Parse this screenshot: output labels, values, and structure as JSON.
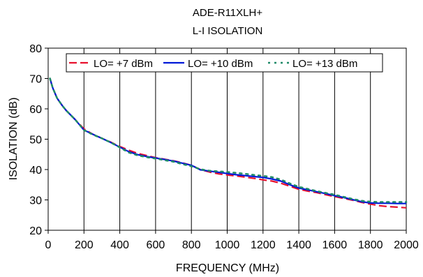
{
  "chart_data": {
    "type": "line",
    "title": "ADE-R11XLH+",
    "subtitle": "L-I ISOLATION",
    "xlabel": "FREQUENCY (MHz)",
    "ylabel": "ISOLATION (dB)",
    "xlim": [
      0,
      2000
    ],
    "ylim": [
      20,
      80
    ],
    "x_ticks": [
      "0",
      "200",
      "400",
      "600",
      "800",
      "1000",
      "1200",
      "1400",
      "1600",
      "1800",
      "2000"
    ],
    "y_ticks": [
      "20",
      "30",
      "40",
      "50",
      "60",
      "70",
      "80"
    ],
    "grid": "vertical",
    "legend_position": "top",
    "series": [
      {
        "name": "LO= +7 dBm",
        "color": "#e8112d",
        "dash": "long-dash",
        "x": [
          10,
          25,
          50,
          80,
          100,
          150,
          200,
          250,
          300,
          350,
          400,
          450,
          500,
          550,
          600,
          650,
          700,
          750,
          800,
          850,
          900,
          950,
          1000,
          1050,
          1100,
          1150,
          1200,
          1250,
          1300,
          1350,
          1400,
          1450,
          1500,
          1550,
          1600,
          1650,
          1700,
          1750,
          1800,
          1850,
          1900,
          1950,
          2000
        ],
        "y": [
          70,
          67,
          63.5,
          61,
          59.5,
          56.5,
          53.4,
          51.6,
          50.3,
          49,
          47.6,
          46.4,
          45.3,
          44.6,
          43.9,
          43.4,
          42.9,
          42.2,
          41.4,
          40,
          39.2,
          38.6,
          38.2,
          37.9,
          37.5,
          37.1,
          36.6,
          36.2,
          35.5,
          34.5,
          33.5,
          32.9,
          32.4,
          31.7,
          31.1,
          30.5,
          29.9,
          29.2,
          28.6,
          28.1,
          27.8,
          27.6,
          27.4
        ]
      },
      {
        "name": "LO= +10 dBm",
        "color": "#0018d8",
        "dash": "solid",
        "x": [
          10,
          25,
          50,
          80,
          100,
          150,
          200,
          250,
          300,
          350,
          400,
          450,
          500,
          550,
          600,
          650,
          700,
          750,
          800,
          850,
          900,
          950,
          1000,
          1050,
          1100,
          1150,
          1200,
          1250,
          1300,
          1350,
          1400,
          1450,
          1500,
          1550,
          1600,
          1650,
          1700,
          1750,
          1800,
          1850,
          1900,
          1950,
          2000
        ],
        "y": [
          70,
          67,
          63.5,
          61,
          59.5,
          56.5,
          53,
          51.6,
          50.3,
          48.9,
          47.4,
          45.9,
          44.9,
          44.3,
          43.8,
          43.3,
          42.8,
          42.1,
          41.4,
          39.9,
          39.5,
          39.1,
          38.7,
          38.3,
          38,
          37.7,
          37.4,
          36.9,
          36.2,
          35,
          33.9,
          33.3,
          32.7,
          32.1,
          31.4,
          30.8,
          30.1,
          29.4,
          29.0,
          28.9,
          28.9,
          28.8,
          28.8
        ]
      },
      {
        "name": "LO= +13 dBm",
        "color": "#1f8a68",
        "dash": "dotted",
        "x": [
          10,
          25,
          50,
          80,
          100,
          150,
          200,
          250,
          300,
          350,
          400,
          450,
          500,
          550,
          600,
          650,
          700,
          750,
          800,
          850,
          900,
          950,
          1000,
          1050,
          1100,
          1150,
          1200,
          1250,
          1300,
          1350,
          1400,
          1450,
          1500,
          1550,
          1600,
          1650,
          1700,
          1750,
          1800,
          1850,
          1900,
          1950,
          2000
        ],
        "y": [
          70,
          67,
          63.5,
          61,
          59.5,
          56.5,
          53,
          51.5,
          50.3,
          48.9,
          47.3,
          45.6,
          44.7,
          44.1,
          43.6,
          43.1,
          42.6,
          41.8,
          41.1,
          40.1,
          39.6,
          39.4,
          39.2,
          38.9,
          38.6,
          38.2,
          37.9,
          37.5,
          36.7,
          35.4,
          34.3,
          33.6,
          32.9,
          32.3,
          31.7,
          31.0,
          30.3,
          29.7,
          29.4,
          29.3,
          29.3,
          29.3,
          29.3
        ]
      }
    ]
  }
}
